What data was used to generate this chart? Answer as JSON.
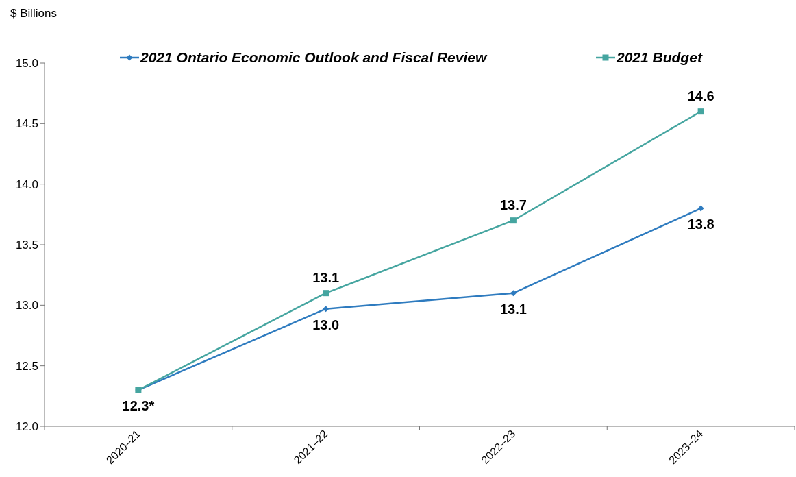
{
  "chart_data": {
    "type": "line",
    "ylabel": "$ Billions",
    "categories": [
      "2020–21",
      "2021–22",
      "2022–23",
      "2023–24"
    ],
    "ylim": [
      12.0,
      15.0
    ],
    "yticks": [
      {
        "value": 12,
        "label": "12.0"
      },
      {
        "value": 12.5,
        "label": "12.5"
      },
      {
        "value": 13,
        "label": "13.0"
      },
      {
        "value": 13.5,
        "label": "13.5"
      },
      {
        "value": 14,
        "label": "14.0"
      },
      {
        "value": 14.5,
        "label": "14.5"
      },
      {
        "value": 15,
        "label": "15.0"
      }
    ],
    "grid": false,
    "legend": "top",
    "line_style": "solid",
    "series": [
      {
        "name": "2021 Ontario Economic Outlook and Fiscal Review",
        "color": "#2e7bbf",
        "marker": "diamond",
        "values": [
          12.3,
          12.97,
          13.1,
          13.8
        ],
        "value_labels": [
          "12.3*",
          "13.0",
          "13.1",
          "13.8"
        ]
      },
      {
        "name": "2021 Budget",
        "color": "#45a5a0",
        "marker": "square",
        "values": [
          12.3,
          13.1,
          13.7,
          14.6
        ],
        "value_labels": [
          null,
          "13.1",
          "13.7",
          "14.6"
        ]
      }
    ]
  }
}
